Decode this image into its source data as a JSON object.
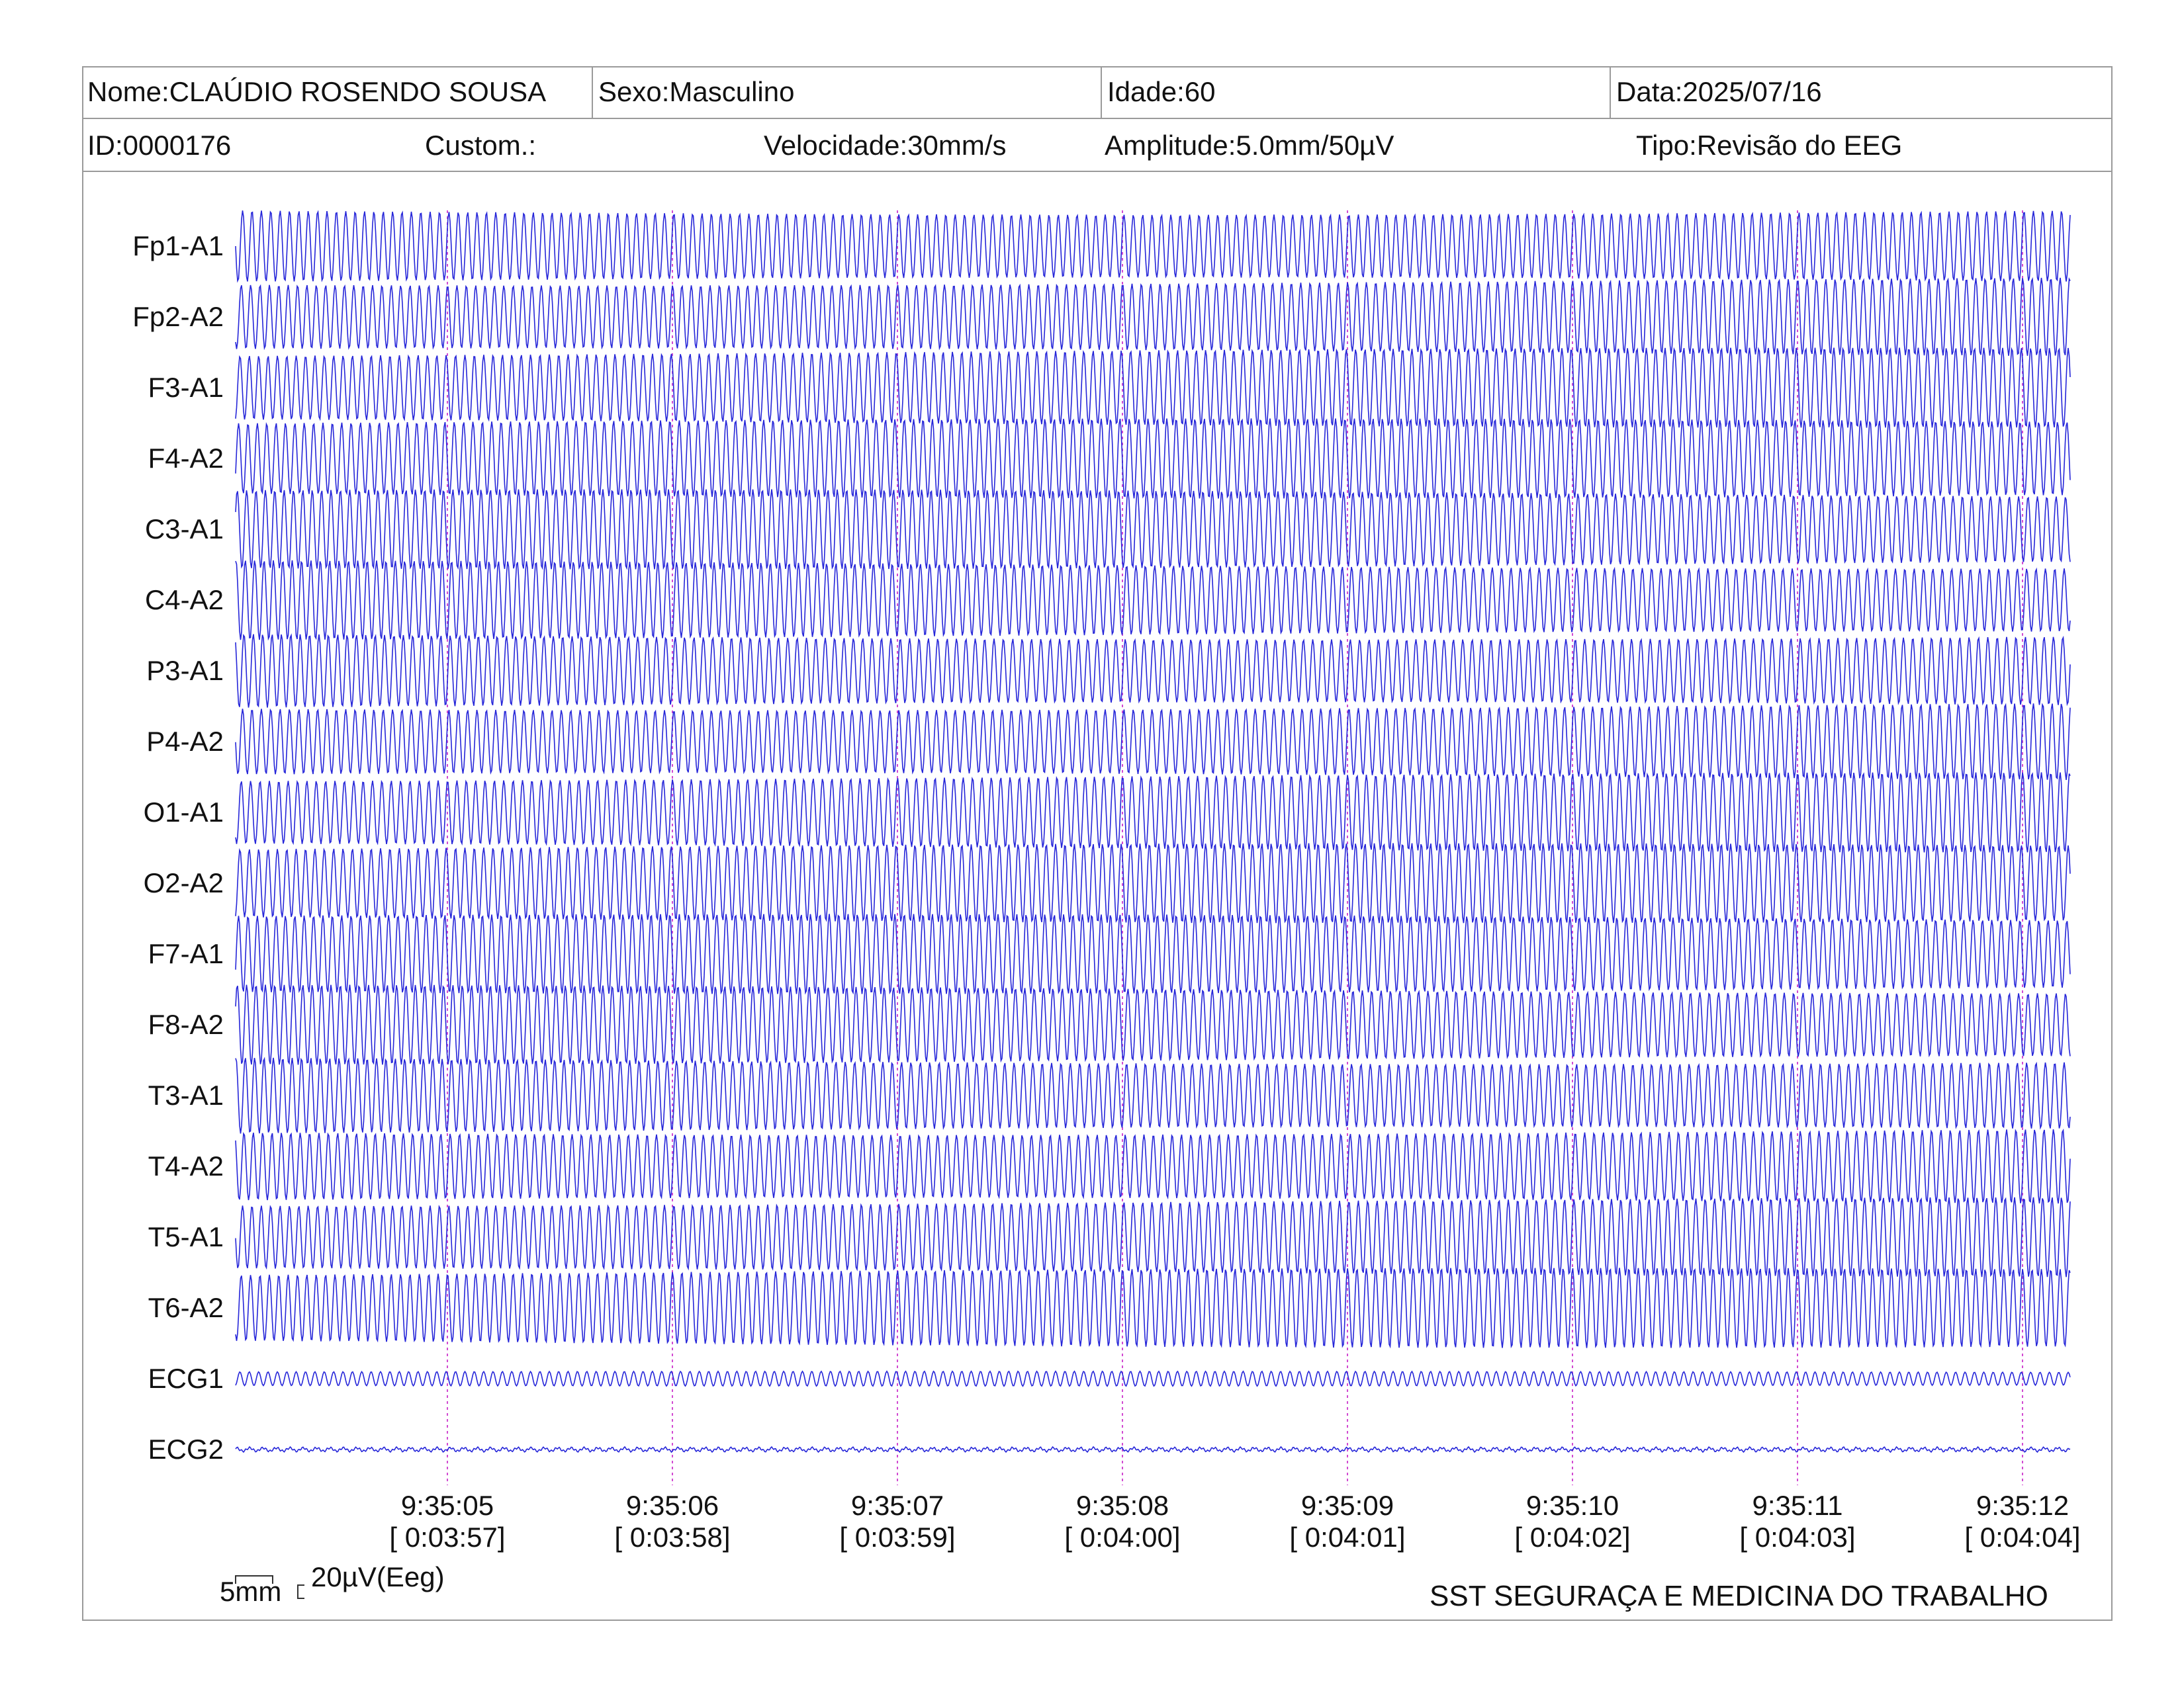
{
  "header": {
    "name": "Nome:CLAÚDIO ROSENDO SOUSA",
    "sex": "Sexo:Masculino",
    "age": "Idade:60",
    "date": "Data:2025/07/16",
    "id": "ID:0000176",
    "custom": "Custom.:",
    "speed": "Velocidade:30mm/s",
    "amplitude": "Amplitude:5.0mm/50µV",
    "type": "Tipo:Revisão do EEG"
  },
  "scale": {
    "time": "5mm",
    "amplitude": "20µV(Eeg)"
  },
  "footer": {
    "org": "SST SEGURAÇA E MEDICINA DO TRABALHO"
  },
  "colors": {
    "trace": "#2626d9",
    "marker": "#d24bd2",
    "border": "#9a9a9a"
  },
  "chart_data": {
    "type": "line",
    "title": "",
    "grid": false,
    "channels": [
      {
        "name": "Fp1-A1",
        "kind": "eeg",
        "cycles_per_sec": 24,
        "amplitude": "large"
      },
      {
        "name": "Fp2-A2",
        "kind": "eeg",
        "cycles_per_sec": 24,
        "amplitude": "large"
      },
      {
        "name": "F3-A1",
        "kind": "eeg",
        "cycles_per_sec": 24,
        "amplitude": "large"
      },
      {
        "name": "F4-A2",
        "kind": "eeg",
        "cycles_per_sec": 24,
        "amplitude": "large"
      },
      {
        "name": "C3-A1",
        "kind": "eeg",
        "cycles_per_sec": 24,
        "amplitude": "large"
      },
      {
        "name": "C4-A2",
        "kind": "eeg",
        "cycles_per_sec": 24,
        "amplitude": "large"
      },
      {
        "name": "P3-A1",
        "kind": "eeg",
        "cycles_per_sec": 24,
        "amplitude": "large"
      },
      {
        "name": "P4-A2",
        "kind": "eeg",
        "cycles_per_sec": 24,
        "amplitude": "large"
      },
      {
        "name": "O1-A1",
        "kind": "eeg",
        "cycles_per_sec": 24,
        "amplitude": "large"
      },
      {
        "name": "O2-A2",
        "kind": "eeg",
        "cycles_per_sec": 24,
        "amplitude": "large"
      },
      {
        "name": "F7-A1",
        "kind": "eeg",
        "cycles_per_sec": 24,
        "amplitude": "large"
      },
      {
        "name": "F8-A2",
        "kind": "eeg",
        "cycles_per_sec": 24,
        "amplitude": "large"
      },
      {
        "name": "T3-A1",
        "kind": "eeg",
        "cycles_per_sec": 24,
        "amplitude": "large"
      },
      {
        "name": "T4-A2",
        "kind": "eeg",
        "cycles_per_sec": 24,
        "amplitude": "large"
      },
      {
        "name": "T5-A1",
        "kind": "eeg",
        "cycles_per_sec": 24,
        "amplitude": "large"
      },
      {
        "name": "T6-A2",
        "kind": "eeg",
        "cycles_per_sec": 24,
        "amplitude": "large"
      },
      {
        "name": "ECG1",
        "kind": "ecg",
        "cycles_per_sec": 24,
        "amplitude": "small"
      },
      {
        "name": "ECG2",
        "kind": "ecg-noise",
        "cycles_per_sec": 24,
        "amplitude": "minimal"
      }
    ],
    "time_markers": [
      {
        "clock": "9:35:05",
        "elapsed": "[ 0:03:57]"
      },
      {
        "clock": "9:35:06",
        "elapsed": "[ 0:03:58]"
      },
      {
        "clock": "9:35:07",
        "elapsed": "[ 0:03:59]"
      },
      {
        "clock": "9:35:08",
        "elapsed": "[ 0:04:00]"
      },
      {
        "clock": "9:35:09",
        "elapsed": "[ 0:04:01]"
      },
      {
        "clock": "9:35:10",
        "elapsed": "[ 0:04:02]"
      },
      {
        "clock": "9:35:11",
        "elapsed": "[ 0:04:03]"
      },
      {
        "clock": "9:35:12",
        "elapsed": "[ 0:04:04]"
      }
    ]
  }
}
